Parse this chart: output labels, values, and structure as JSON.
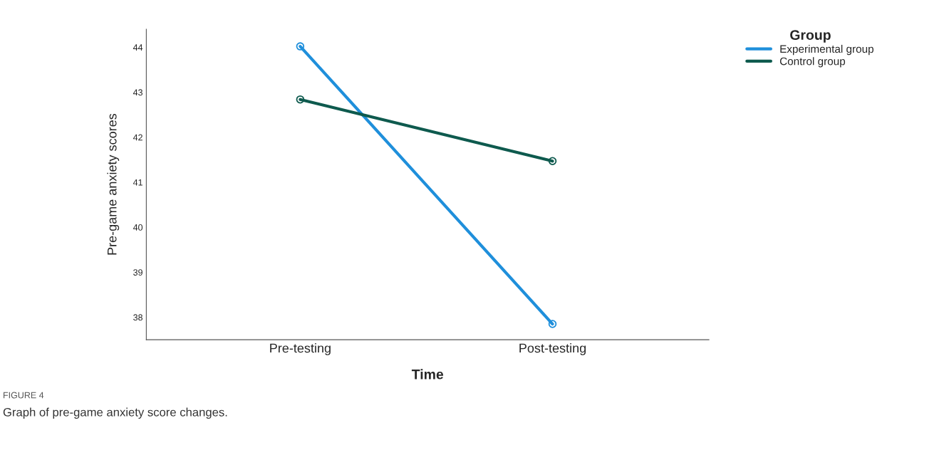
{
  "chart_data": {
    "type": "line",
    "xlabel": "Time",
    "ylabel": "Pre-game anxiety scores",
    "legend_title": "Group",
    "categories": [
      "Pre-testing",
      "Post-testing"
    ],
    "series": [
      {
        "name": "Experimental group",
        "color": "#1f8fdb",
        "values": [
          44.02,
          37.85
        ]
      },
      {
        "name": "Control group",
        "color": "#0e5a4e",
        "values": [
          42.84,
          41.47
        ]
      }
    ],
    "ylim": [
      37.5,
      44.4
    ],
    "yticks": [
      38,
      39,
      40,
      41,
      42,
      43,
      44
    ],
    "grid": false,
    "legend": "top right",
    "marker": "circle",
    "line_style": "solid",
    "annotations": [
      "FIGURE 4",
      "Graph of pre-game anxiety score changes."
    ]
  }
}
